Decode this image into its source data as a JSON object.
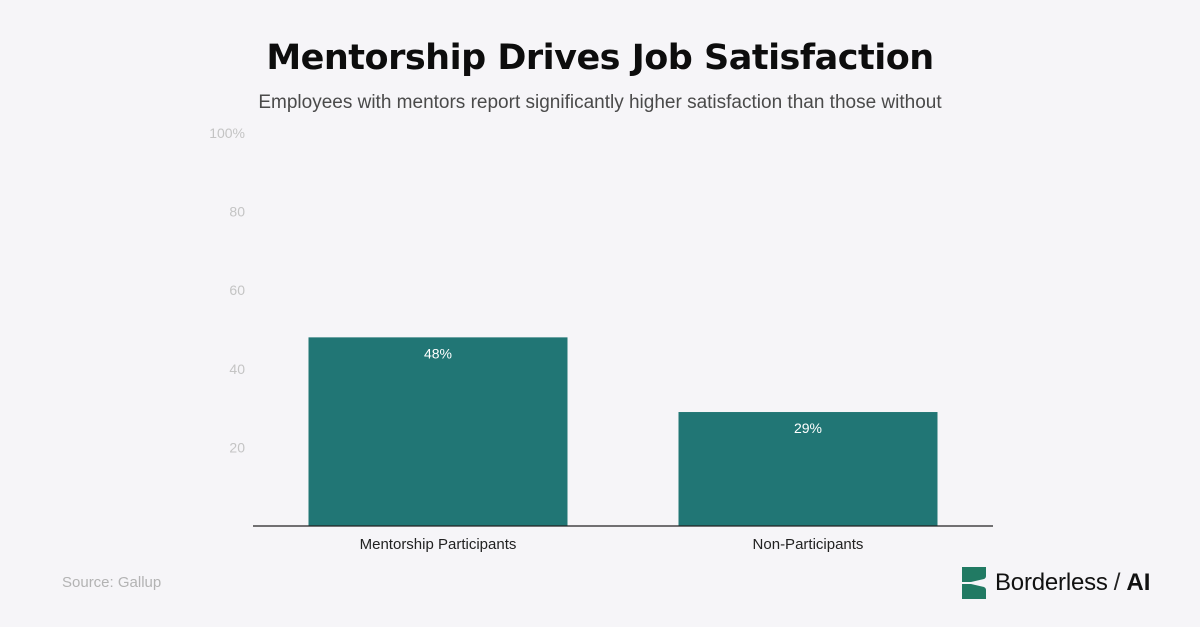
{
  "header": {
    "title": "Mentorship Drives Job Satisfaction",
    "subtitle": "Employees with mentors report significantly higher satisfaction than those without"
  },
  "chart_data": {
    "type": "bar",
    "categories": [
      "Mentorship Participants",
      "Non-Participants"
    ],
    "values": [
      48,
      29
    ],
    "data_labels": [
      "48%",
      "29%"
    ],
    "ylim": [
      0,
      100
    ],
    "yticks": [
      20,
      40,
      60,
      80,
      100
    ],
    "ytick_labels": [
      "20",
      "40",
      "60",
      "80",
      "100%"
    ],
    "grid": false,
    "bar_color": "#217675",
    "label_color": "#ffffff"
  },
  "footer": {
    "source": "Source: Gallup",
    "brand": {
      "name": "Borderless",
      "separator": "/",
      "suffix": "AI",
      "color": "#217a63"
    }
  }
}
